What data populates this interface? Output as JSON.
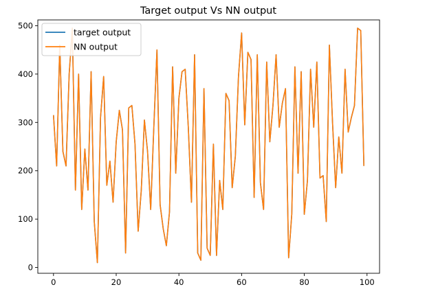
{
  "chart_data": {
    "type": "line",
    "title": "Target output Vs NN output",
    "xlabel": "",
    "ylabel": "",
    "xlim": [
      -5,
      104
    ],
    "ylim": [
      -12,
      512
    ],
    "xticks": [
      0,
      20,
      40,
      60,
      80,
      100
    ],
    "yticks": [
      0,
      100,
      200,
      300,
      400,
      500
    ],
    "grid": false,
    "legend": "top-left",
    "series": [
      {
        "name": "target output",
        "color": "#1f77b4",
        "values": [
          315,
          210,
          460,
          240,
          210,
          400,
          495,
          160,
          400,
          120,
          245,
          160,
          405,
          95,
          10,
          310,
          395,
          170,
          220,
          135,
          260,
          325,
          285,
          30,
          330,
          335,
          255,
          75,
          160,
          305,
          240,
          120,
          290,
          450,
          130,
          80,
          45,
          115,
          415,
          195,
          350,
          405,
          410,
          290,
          135,
          440,
          30,
          15,
          370,
          40,
          25,
          255,
          25,
          180,
          120,
          360,
          345,
          165,
          230,
          395,
          485,
          295,
          445,
          430,
          145,
          440,
          175,
          120,
          425,
          260,
          335,
          440,
          290,
          340,
          370,
          20,
          110,
          415,
          195,
          405,
          110,
          180,
          410,
          290,
          425,
          185,
          190,
          95,
          460,
          300,
          165,
          270,
          195,
          410,
          280,
          310,
          335,
          495,
          490,
          210
        ]
      },
      {
        "name": "NN output",
        "color": "#ff7f0e",
        "values": [
          315,
          210,
          460,
          240,
          210,
          400,
          495,
          160,
          400,
          120,
          245,
          160,
          405,
          95,
          10,
          310,
          395,
          170,
          220,
          135,
          260,
          325,
          285,
          30,
          330,
          335,
          255,
          75,
          160,
          305,
          240,
          120,
          290,
          450,
          130,
          80,
          45,
          115,
          415,
          195,
          350,
          405,
          410,
          290,
          135,
          440,
          30,
          15,
          370,
          40,
          25,
          255,
          25,
          180,
          120,
          360,
          345,
          165,
          230,
          395,
          485,
          295,
          445,
          430,
          145,
          440,
          175,
          120,
          425,
          260,
          335,
          440,
          290,
          340,
          370,
          20,
          110,
          415,
          195,
          405,
          110,
          180,
          410,
          290,
          425,
          185,
          190,
          95,
          460,
          300,
          165,
          270,
          195,
          410,
          280,
          310,
          335,
          495,
          490,
          210
        ]
      }
    ]
  }
}
